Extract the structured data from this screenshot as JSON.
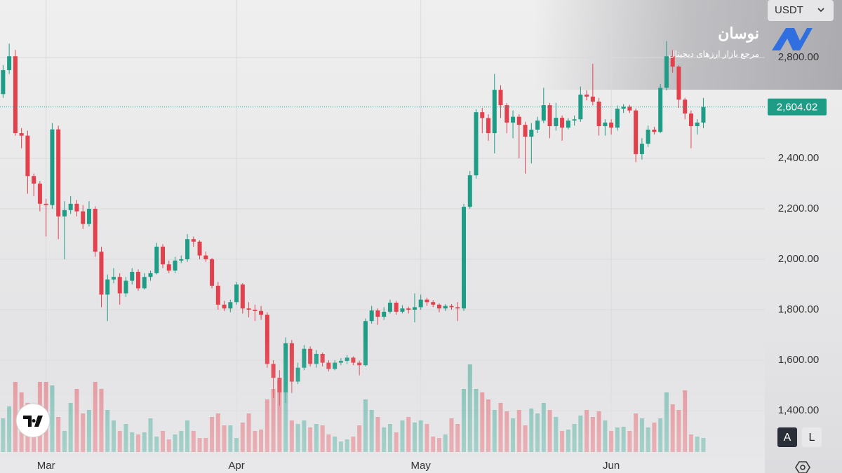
{
  "chart_data": {
    "type": "candlestick",
    "currency": "USDT",
    "last_close_label": "2,604.02",
    "up_color": "#1f9c85",
    "down_color": "#e2404c",
    "watermark": {
      "title": "نوسان",
      "subtitle": "مرجع بازار ارزهای دیجیتال"
    },
    "scale_buttons": [
      "A",
      "L"
    ],
    "xlim": [
      -0.5,
      124
    ],
    "ylim": [
      1236,
      3028
    ],
    "xticks": [
      {
        "value": 7,
        "label": "Mar"
      },
      {
        "value": 38,
        "label": "Apr"
      },
      {
        "value": 68,
        "label": "May"
      },
      {
        "value": 99,
        "label": "Jun"
      }
    ],
    "yticks": [
      {
        "value": 1400,
        "label": "1,400.00"
      },
      {
        "value": 1600,
        "label": "1,600.00"
      },
      {
        "value": 1800,
        "label": "1,800.00"
      },
      {
        "value": 2000,
        "label": "2,000.00"
      },
      {
        "value": 2200,
        "label": "2,200.00"
      },
      {
        "value": 2400,
        "label": "2,400.00"
      },
      {
        "value": 2800,
        "label": "2,800.00"
      }
    ],
    "candles": {
      "open": [
        2655,
        2750,
        2805,
        2500,
        2490,
        2330,
        2300,
        2220,
        2215,
        2515,
        2170,
        2195,
        2220,
        2190,
        2140,
        2200,
        2030,
        1860,
        1920,
        1930,
        1865,
        1915,
        1950,
        1885,
        1930,
        1945,
        2050,
        1980,
        1955,
        1995,
        2000,
        2080,
        2070,
        2015,
        2000,
        1895,
        1820,
        1805,
        1830,
        1900,
        1805,
        1800,
        1795,
        1780,
        1585,
        1530,
        1472,
        1667,
        1515,
        1570,
        1645,
        1585,
        1625,
        1590,
        1565,
        1590,
        1597,
        1610,
        1590,
        1580,
        1755,
        1797,
        1772,
        1792,
        1828,
        1792,
        1805,
        1800,
        1810,
        1840,
        1830,
        1820,
        1805,
        1815,
        1810,
        1805,
        2208,
        2333,
        2583,
        2560,
        2500,
        2672,
        2611,
        2542,
        2565,
        2533,
        2486,
        2514,
        2550,
        2611,
        2528,
        2561,
        2522,
        2550,
        2555,
        2653,
        2645,
        2625,
        2528,
        2542,
        2522,
        2597,
        2605,
        2590,
        2417,
        2458,
        2514,
        2505,
        2680,
        2805,
        2764,
        2633,
        2578,
        2528,
        2542
      ],
      "high": [
        2770,
        2855,
        2830,
        2520,
        2510,
        2340,
        2310,
        2240,
        2540,
        2530,
        2230,
        2250,
        2235,
        2215,
        2230,
        2210,
        2050,
        1940,
        1965,
        1945,
        1930,
        1965,
        1960,
        1945,
        1955,
        2065,
        2060,
        1995,
        2010,
        2015,
        2100,
        2090,
        2075,
        2030,
        2005,
        1910,
        1835,
        1840,
        1910,
        1905,
        1830,
        1820,
        1815,
        1790,
        1600,
        1560,
        1690,
        1680,
        1590,
        1660,
        1655,
        1640,
        1630,
        1600,
        1600,
        1608,
        1620,
        1615,
        1598,
        1765,
        1815,
        1805,
        1810,
        1840,
        1835,
        1818,
        1812,
        1865,
        1860,
        1848,
        1838,
        1825,
        1822,
        1822,
        1830,
        2220,
        2350,
        2595,
        2600,
        2575,
        2735,
        2690,
        2620,
        2590,
        2575,
        2545,
        2540,
        2565,
        2680,
        2620,
        2620,
        2570,
        2560,
        2570,
        2685,
        2670,
        2775,
        2640,
        2555,
        2555,
        2610,
        2615,
        2612,
        2598,
        2480,
        2530,
        2525,
        2695,
        2865,
        2830,
        2770,
        2640,
        2590,
        2555,
        2640
      ],
      "low": [
        2640,
        2735,
        2490,
        2440,
        2260,
        2250,
        2190,
        2090,
        2200,
        2080,
        2000,
        2180,
        2170,
        2120,
        2130,
        2010,
        1810,
        1755,
        1905,
        1820,
        1850,
        1900,
        1875,
        1880,
        1915,
        1940,
        1965,
        1945,
        1945,
        1985,
        1990,
        2050,
        2000,
        1990,
        1885,
        1800,
        1795,
        1790,
        1820,
        1785,
        1770,
        1755,
        1760,
        1570,
        1450,
        1420,
        1430,
        1470,
        1505,
        1560,
        1575,
        1570,
        1575,
        1555,
        1560,
        1580,
        1585,
        1580,
        1540,
        1575,
        1745,
        1740,
        1760,
        1785,
        1780,
        1785,
        1785,
        1750,
        1800,
        1815,
        1810,
        1790,
        1795,
        1800,
        1755,
        1795,
        2200,
        2320,
        2500,
        2470,
        2420,
        2560,
        2500,
        2480,
        2400,
        2340,
        2380,
        2500,
        2540,
        2480,
        2510,
        2470,
        2515,
        2530,
        2545,
        2630,
        2610,
        2490,
        2490,
        2495,
        2510,
        2580,
        2580,
        2385,
        2395,
        2445,
        2495,
        2500,
        2670,
        2740,
        2600,
        2555,
        2440,
        2495,
        2520
      ],
      "close": [
        2750,
        2805,
        2500,
        2490,
        2330,
        2300,
        2220,
        2215,
        2515,
        2170,
        2195,
        2220,
        2190,
        2140,
        2200,
        2030,
        1860,
        1920,
        1930,
        1865,
        1915,
        1950,
        1885,
        1930,
        1945,
        2050,
        1980,
        1955,
        1995,
        2000,
        2080,
        2070,
        2015,
        2000,
        1895,
        1820,
        1805,
        1830,
        1900,
        1805,
        1800,
        1795,
        1780,
        1585,
        1530,
        1472,
        1667,
        1515,
        1570,
        1645,
        1585,
        1625,
        1590,
        1565,
        1590,
        1597,
        1610,
        1590,
        1580,
        1755,
        1797,
        1772,
        1792,
        1828,
        1792,
        1805,
        1800,
        1810,
        1840,
        1830,
        1820,
        1805,
        1815,
        1810,
        1805,
        2208,
        2333,
        2583,
        2560,
        2500,
        2672,
        2611,
        2542,
        2565,
        2533,
        2486,
        2514,
        2550,
        2611,
        2528,
        2561,
        2522,
        2550,
        2555,
        2653,
        2645,
        2625,
        2528,
        2542,
        2522,
        2597,
        2605,
        2590,
        2417,
        2458,
        2514,
        2505,
        2680,
        2805,
        2764,
        2633,
        2578,
        2528,
        2542,
        2604.02
      ]
    },
    "volume": [
      48,
      65,
      100,
      85,
      70,
      58,
      100,
      100,
      95,
      50,
      30,
      70,
      90,
      55,
      60,
      100,
      90,
      60,
      45,
      30,
      40,
      28,
      25,
      28,
      48,
      22,
      30,
      18,
      25,
      30,
      45,
      30,
      20,
      20,
      50,
      55,
      38,
      38,
      20,
      42,
      55,
      30,
      32,
      75,
      90,
      100,
      90,
      45,
      40,
      45,
      35,
      40,
      38,
      25,
      22,
      15,
      18,
      22,
      38,
      75,
      60,
      50,
      35,
      40,
      28,
      45,
      50,
      42,
      45,
      40,
      22,
      20,
      25,
      48,
      40,
      90,
      125,
      90,
      85,
      75,
      60,
      70,
      58,
      48,
      60,
      38,
      62,
      55,
      70,
      60,
      50,
      30,
      32,
      40,
      52,
      60,
      50,
      58,
      45,
      30,
      35,
      36,
      30,
      55,
      48,
      35,
      42,
      48,
      85,
      68,
      60,
      88,
      25,
      22,
      20
    ]
  }
}
